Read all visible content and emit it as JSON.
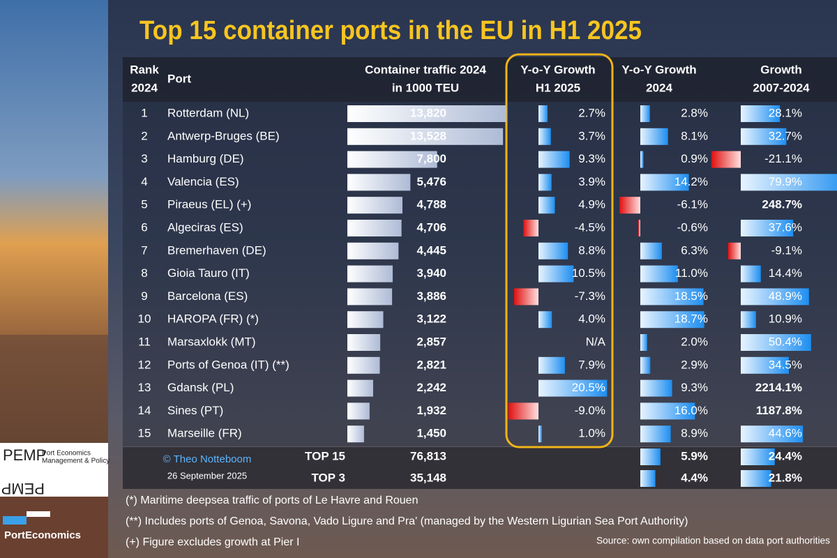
{
  "header": {
    "title": "Top 15 container ports in the EU in H1 2025"
  },
  "table": {
    "columns": [
      [
        "Rank",
        "2024"
      ],
      [
        "Port"
      ],
      [
        "Container traffic 2024",
        "in 1000 TEU"
      ],
      [
        "Y-o-Y Growth",
        "H1 2025"
      ],
      [
        "Y-o-Y Growth",
        "2024"
      ],
      [
        "Growth",
        "2007-2024"
      ]
    ],
    "rows": [
      {
        "rank": 1,
        "port": "Rotterdam (NL)",
        "traffic": {
          "value": 13820,
          "label": "13,820"
        },
        "growth_h1_2025": {
          "value": 2.7,
          "label": "2.7%"
        },
        "growth_2024": {
          "value": 2.8,
          "label": "2.8%"
        },
        "growth_2007_2024": {
          "value": 28.1,
          "label": "28.1%"
        }
      },
      {
        "rank": 2,
        "port": "Antwerp-Bruges (BE)",
        "traffic": {
          "value": 13528,
          "label": "13,528"
        },
        "growth_h1_2025": {
          "value": 3.7,
          "label": "3.7%"
        },
        "growth_2024": {
          "value": 8.1,
          "label": "8.1%"
        },
        "growth_2007_2024": {
          "value": 32.7,
          "label": "32.7%"
        }
      },
      {
        "rank": 3,
        "port": "Hamburg (DE)",
        "traffic": {
          "value": 7800,
          "label": "7,800"
        },
        "growth_h1_2025": {
          "value": 9.3,
          "label": "9.3%"
        },
        "growth_2024": {
          "value": 0.9,
          "label": "0.9%"
        },
        "growth_2007_2024": {
          "value": -21.1,
          "label": "-21.1%"
        }
      },
      {
        "rank": 4,
        "port": "Valencia (ES)",
        "traffic": {
          "value": 5476,
          "label": "5,476"
        },
        "growth_h1_2025": {
          "value": 3.9,
          "label": "3.9%"
        },
        "growth_2024": {
          "value": 14.2,
          "label": "14.2%"
        },
        "growth_2007_2024": {
          "value": 79.9,
          "label": "79.9%"
        }
      },
      {
        "rank": 5,
        "port": "Piraeus (EL) (+)",
        "traffic": {
          "value": 4788,
          "label": "4,788"
        },
        "growth_h1_2025": {
          "value": 4.9,
          "label": "4.9%"
        },
        "growth_2024": {
          "value": -6.1,
          "label": "-6.1%"
        },
        "growth_2007_2024": {
          "value": 248.7,
          "label": "248.7%"
        }
      },
      {
        "rank": 6,
        "port": "Algeciras (ES)",
        "traffic": {
          "value": 4706,
          "label": "4,706"
        },
        "growth_h1_2025": {
          "value": -4.5,
          "label": "-4.5%"
        },
        "growth_2024": {
          "value": -0.6,
          "label": "-0.6%"
        },
        "growth_2007_2024": {
          "value": 37.6,
          "label": "37.6%"
        }
      },
      {
        "rank": 7,
        "port": "Bremerhaven (DE)",
        "traffic": {
          "value": 4445,
          "label": "4,445"
        },
        "growth_h1_2025": {
          "value": 8.8,
          "label": "8.8%"
        },
        "growth_2024": {
          "value": 6.3,
          "label": "6.3%"
        },
        "growth_2007_2024": {
          "value": -9.1,
          "label": "-9.1%"
        }
      },
      {
        "rank": 8,
        "port": "Gioia Tauro (IT)",
        "traffic": {
          "value": 3940,
          "label": "3,940"
        },
        "growth_h1_2025": {
          "value": 10.5,
          "label": "10.5%"
        },
        "growth_2024": {
          "value": 11.0,
          "label": "11.0%"
        },
        "growth_2007_2024": {
          "value": 14.4,
          "label": "14.4%"
        }
      },
      {
        "rank": 9,
        "port": "Barcelona (ES)",
        "traffic": {
          "value": 3886,
          "label": "3,886"
        },
        "growth_h1_2025": {
          "value": -7.3,
          "label": "-7.3%"
        },
        "growth_2024": {
          "value": 18.5,
          "label": "18.5%"
        },
        "growth_2007_2024": {
          "value": 48.9,
          "label": "48.9%"
        }
      },
      {
        "rank": 10,
        "port": "HAROPA (FR) (*)",
        "traffic": {
          "value": 3122,
          "label": "3,122"
        },
        "growth_h1_2025": {
          "value": 4.0,
          "label": "4.0%"
        },
        "growth_2024": {
          "value": 18.7,
          "label": "18.7%"
        },
        "growth_2007_2024": {
          "value": 10.9,
          "label": "10.9%"
        }
      },
      {
        "rank": 11,
        "port": "Marsaxlokk (MT)",
        "traffic": {
          "value": 2857,
          "label": "2,857"
        },
        "growth_h1_2025": {
          "value": null,
          "label": "N/A"
        },
        "growth_2024": {
          "value": 2.0,
          "label": "2.0%"
        },
        "growth_2007_2024": {
          "value": 50.4,
          "label": "50.4%"
        }
      },
      {
        "rank": 12,
        "port": "Ports of Genoa (IT) (**)",
        "traffic": {
          "value": 2821,
          "label": "2,821"
        },
        "growth_h1_2025": {
          "value": 7.9,
          "label": "7.9%"
        },
        "growth_2024": {
          "value": 2.9,
          "label": "2.9%"
        },
        "growth_2007_2024": {
          "value": 34.5,
          "label": "34.5%"
        }
      },
      {
        "rank": 13,
        "port": "Gdansk (PL)",
        "traffic": {
          "value": 2242,
          "label": "2,242"
        },
        "growth_h1_2025": {
          "value": 20.5,
          "label": "20.5%"
        },
        "growth_2024": {
          "value": 9.3,
          "label": "9.3%"
        },
        "growth_2007_2024": {
          "value": 2214.1,
          "label": "2214.1%"
        }
      },
      {
        "rank": 14,
        "port": "Sines (PT)",
        "traffic": {
          "value": 1932,
          "label": "1,932"
        },
        "growth_h1_2025": {
          "value": -9.0,
          "label": "-9.0%"
        },
        "growth_2024": {
          "value": 16.0,
          "label": "16.0%"
        },
        "growth_2007_2024": {
          "value": 1187.8,
          "label": "1187.8%"
        }
      },
      {
        "rank": 15,
        "port": "Marseille (FR)",
        "traffic": {
          "value": 1450,
          "label": "1,450"
        },
        "growth_h1_2025": {
          "value": 1.0,
          "label": "1.0%"
        },
        "growth_2024": {
          "value": 8.9,
          "label": "8.9%"
        },
        "growth_2007_2024": {
          "value": 44.6,
          "label": "44.6%"
        }
      }
    ],
    "totals": [
      {
        "label": "TOP 15",
        "traffic": {
          "value": 76813,
          "label": "76,813"
        },
        "growth_2024": {
          "value": 5.9,
          "label": "5.9%"
        },
        "growth_2007_2024": {
          "value": 24.4,
          "label": "24.4%"
        }
      },
      {
        "label": "TOP 3",
        "traffic": {
          "value": 35148,
          "label": "35,148"
        },
        "growth_2024": {
          "value": 4.4,
          "label": "4.4%"
        },
        "growth_2007_2024": {
          "value": 21.8,
          "label": "21.8%"
        }
      }
    ]
  },
  "credit": {
    "author": "© Theo Notteboom",
    "date": "26 September 2025"
  },
  "footnotes": [
    "(*) Maritime deepsea traffic of ports of Le Havre and Rouen",
    "(**) Includes ports of Genoa, Savona, Vado Ligure and Pra' (managed by the Western Ligurian Sea Port Authority)",
    "(+) Figure excludes growth at Pier I"
  ],
  "source": "Source: own compilation based on data port authorities",
  "logos": {
    "pemp": "PEMP",
    "pemp_subtitle": [
      "Port Economics",
      "Management & Policy"
    ],
    "porteconomics": "PortEconomics"
  }
}
